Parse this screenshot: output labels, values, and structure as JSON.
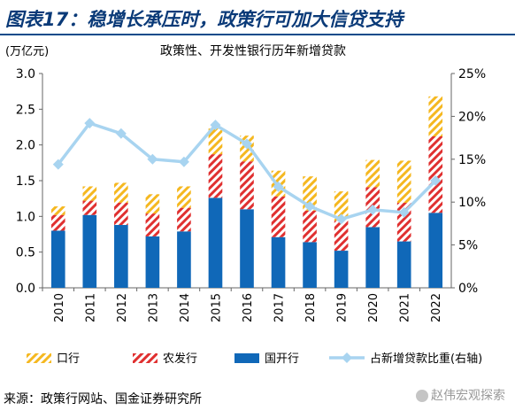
{
  "header": {
    "title": "图表17：稳增长承压时，政策行可加大信贷支持"
  },
  "chart_data": {
    "type": "bar",
    "title": "政策性、开发性银行历年新增贷款",
    "left_axis_unit": "(万亿元)",
    "categories": [
      "2010",
      "2011",
      "2012",
      "2013",
      "2014",
      "2015",
      "2016",
      "2017",
      "2018",
      "2019",
      "2020",
      "2021",
      "2022"
    ],
    "series": [
      {
        "name": "国开行",
        "kind": "bar",
        "values": [
          0.8,
          1.02,
          0.88,
          0.72,
          0.79,
          1.26,
          1.1,
          0.71,
          0.64,
          0.52,
          0.85,
          0.65,
          1.05
        ],
        "color": "#1068b8"
      },
      {
        "name": "农发行",
        "kind": "bar",
        "values": [
          0.22,
          0.2,
          0.31,
          0.32,
          0.33,
          0.61,
          0.67,
          0.57,
          0.44,
          0.42,
          0.56,
          0.54,
          1.07
        ],
        "color": "#e03030"
      },
      {
        "name": "口行",
        "kind": "bar",
        "values": [
          0.12,
          0.2,
          0.28,
          0.27,
          0.3,
          0.36,
          0.36,
          0.36,
          0.48,
          0.41,
          0.38,
          0.59,
          0.56
        ],
        "color": "#f5b820"
      },
      {
        "name": "占新增贷款比重(右轴)",
        "kind": "line",
        "axis": "right",
        "values": [
          14.4,
          19.2,
          18.0,
          15.0,
          14.7,
          19.0,
          16.8,
          11.8,
          9.5,
          8.0,
          9.1,
          8.8,
          12.5
        ],
        "color": "#a8d4f0"
      }
    ],
    "left_axis": {
      "min": 0,
      "max": 3.0,
      "ticks": [
        "0.0",
        "0.5",
        "1.0",
        "1.5",
        "2.0",
        "2.5",
        "3.0"
      ]
    },
    "right_axis": {
      "min": 0,
      "max": 25,
      "ticks": [
        "0%",
        "5%",
        "10%",
        "15%",
        "20%",
        "25%"
      ]
    },
    "grid": false,
    "legend_position": "bottom"
  },
  "footer": {
    "source": "来源：政策行网站、国金证券研究所",
    "watermark": "赵伟宏观探索"
  }
}
